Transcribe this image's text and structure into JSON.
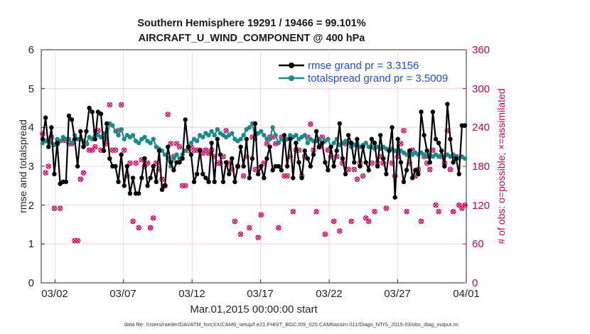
{
  "chart_data": {
    "type": "line",
    "title": "Southern Hemisphere 19291 / 19466 = 99.101%",
    "subtitle": "AIRCRAFT_U_WIND_COMPONENT @ 400 hPa",
    "xlabel": "Mar.01,2015 00:00:00 start",
    "ylabel_left": "rmse and totalspread",
    "ylabel_right": "# of obs: o=possible; ×=assimilated",
    "footnote": "data file: /Users/raeder/DAI/ATM_forcXX/CAM6_setup/f.e21.FHIST_BGC.f09_025.CAM6assim.011/Diags_NTrS_2015-03/obs_diag_output.nc",
    "xlim": [
      0,
      31
    ],
    "ylim_left": [
      0,
      6
    ],
    "ylim_right": [
      0,
      360
    ],
    "x_tick_values": [
      1,
      6,
      11,
      16,
      21,
      26,
      31
    ],
    "x_tick_labels": [
      "03/02",
      "03/07",
      "03/12",
      "03/17",
      "03/22",
      "03/27",
      "04/01"
    ],
    "y_tick_labels_left": [
      "0",
      "1",
      "2",
      "3",
      "4",
      "5",
      "6"
    ],
    "y_tick_labels_right": [
      "0",
      "60",
      "120",
      "180",
      "240",
      "300",
      "360"
    ],
    "legend_placement": "top-right",
    "colors": {
      "rmse": "#000000",
      "totalspread": "#1a8a8a",
      "obs": "#d6005f",
      "legend_text": "#1f4fd8",
      "grid": "#ffc8dc",
      "right_axis": "#c8005a"
    },
    "series": [
      {
        "name": "rmse grand pr = 3.3156",
        "axis": "left",
        "values": [
          3.7,
          4.25,
          3.5,
          4.0,
          2.8,
          3.6,
          2.55,
          2.6,
          2.6,
          4.3,
          4.2,
          3.7,
          3.0,
          3.9,
          3.5,
          3.9,
          4.5,
          4.4,
          3.7,
          4.4,
          4.35,
          3.4,
          4.1,
          3.2,
          3.0,
          3.0,
          2.6,
          3.3,
          2.5,
          3.0,
          2.3,
          2.7,
          2.3,
          2.3,
          2.7,
          3.2,
          2.5,
          2.7,
          3.0,
          2.6,
          3.4,
          2.4,
          2.5,
          3.5,
          3.1,
          2.9,
          3.1,
          3.1,
          3.2,
          4.2,
          3.5,
          3.3,
          2.6,
          2.8,
          3.4,
          2.8,
          2.7,
          2.6,
          3.6,
          2.6,
          3.7,
          3.3,
          2.6,
          3.1,
          2.8,
          3.2,
          2.6,
          3.0,
          3.5,
          3.0,
          3.7,
          2.7,
          3.2,
          4.1,
          2.8,
          3.0,
          2.7,
          3.2,
          3.5,
          2.9,
          3.0,
          3.0,
          2.9,
          3.8,
          3.0,
          3.7,
          2.7,
          3.6,
          3.1,
          2.7,
          3.4,
          3.2,
          3.0,
          3.3,
          3.9,
          3.5,
          3.6,
          3.1,
          2.9,
          3.5,
          3.0,
          3.4,
          4.1,
          3.2,
          2.8,
          3.8,
          3.6,
          3.1,
          3.7,
          3.0,
          3.5,
          3.1,
          2.9,
          3.7,
          3.6,
          3.0,
          3.8,
          3.2,
          2.8,
          3.4,
          4.0,
          2.2,
          3.7,
          3.1,
          2.6,
          2.9,
          3.4,
          2.7,
          2.9,
          2.8,
          4.4,
          3.8,
          3.4,
          3.1,
          4.4,
          3.7,
          3.6,
          3.4,
          3.0,
          4.6,
          3.7,
          3.1,
          3.2,
          2.8,
          4.05,
          4.05
        ]
      },
      {
        "name": "totalspread grand pr = 3.5009",
        "axis": "left",
        "values": [
          3.6,
          3.65,
          3.7,
          3.6,
          3.55,
          3.7,
          3.65,
          3.75,
          3.7,
          3.7,
          3.6,
          3.8,
          3.7,
          3.7,
          3.65,
          3.6,
          3.75,
          3.7,
          3.9,
          3.8,
          3.75,
          3.85,
          3.7,
          4.1,
          4.05,
          3.9,
          3.8,
          3.95,
          3.7,
          3.8,
          3.75,
          3.8,
          3.65,
          3.6,
          3.7,
          3.75,
          3.65,
          3.6,
          3.7,
          3.5,
          3.45,
          3.4,
          3.3,
          3.2,
          3.0,
          3.2,
          3.3,
          3.2,
          3.3,
          3.4,
          3.5,
          3.6,
          3.7,
          3.65,
          3.8,
          3.75,
          3.85,
          3.8,
          3.9,
          3.8,
          3.95,
          3.85,
          3.8,
          3.75,
          3.8,
          3.85,
          3.7,
          3.65,
          3.7,
          3.8,
          3.95,
          4.0,
          4.1,
          3.7,
          3.85,
          3.9,
          3.8,
          3.7,
          3.7,
          4.0,
          3.8,
          3.6,
          3.7,
          3.65,
          3.7,
          3.8,
          3.75,
          3.8,
          3.7,
          3.75,
          3.8,
          3.6,
          3.7,
          3.65,
          3.65,
          3.7,
          3.6,
          3.65,
          3.7,
          3.5,
          3.6,
          3.7,
          3.55,
          3.6,
          3.65,
          3.6,
          3.5,
          3.55,
          3.6,
          3.5,
          3.55,
          3.6,
          3.5,
          3.5,
          3.45,
          3.5,
          3.45,
          3.5,
          3.45,
          3.4,
          3.45,
          3.4,
          3.35,
          3.4,
          3.35,
          3.3,
          3.35,
          3.3,
          3.35,
          3.3,
          3.35,
          3.3,
          3.25,
          3.3,
          3.25,
          3.3,
          3.25,
          3.3,
          3.25,
          3.3,
          3.25,
          3.3,
          3.25,
          3.2,
          3.25,
          3.2
        ]
      },
      {
        "name": "# of obs possible / assimilated",
        "axis": "right",
        "values": [
          230,
          170,
          180,
          225,
          115,
          215,
          115,
          220,
          220,
          215,
          215,
          65,
          65,
          160,
          170,
          215,
          205,
          205,
          210,
          235,
          205,
          225,
          215,
          275,
          205,
          205,
          235,
          275,
          205,
          165,
          185,
          95,
          185,
          85,
          190,
          180,
          185,
          85,
          100,
          185,
          175,
          160,
          150,
          260,
          215,
          195,
          215,
          210,
          150,
          150,
          205,
          210,
          205,
          205,
          205,
          200,
          205,
          200,
          205,
          195,
          185,
          185,
          195,
          235,
          185,
          175,
          95,
          180,
          75,
          165,
          195,
          85,
          225,
          175,
          70,
          105,
          185,
          215,
          225,
          225,
          215,
          85,
          225,
          165,
          165,
          195,
          110,
          205,
          205,
          165,
          195,
          225,
          245,
          205,
          110,
          210,
          225,
          75,
          205,
          195,
          95,
          195,
          80,
          185,
          215,
          175,
          95,
          175,
          160,
          185,
          165,
          100,
          95,
          185,
          110,
          185,
          195,
          185,
          115,
          205,
          185,
          165,
          195,
          215,
          235,
          110,
          185,
          205,
          165,
          175,
          95,
          195,
          185,
          175,
          205,
          120,
          110,
          195,
          185,
          235,
          175,
          110,
          195,
          120,
          115,
          120
        ]
      }
    ]
  }
}
